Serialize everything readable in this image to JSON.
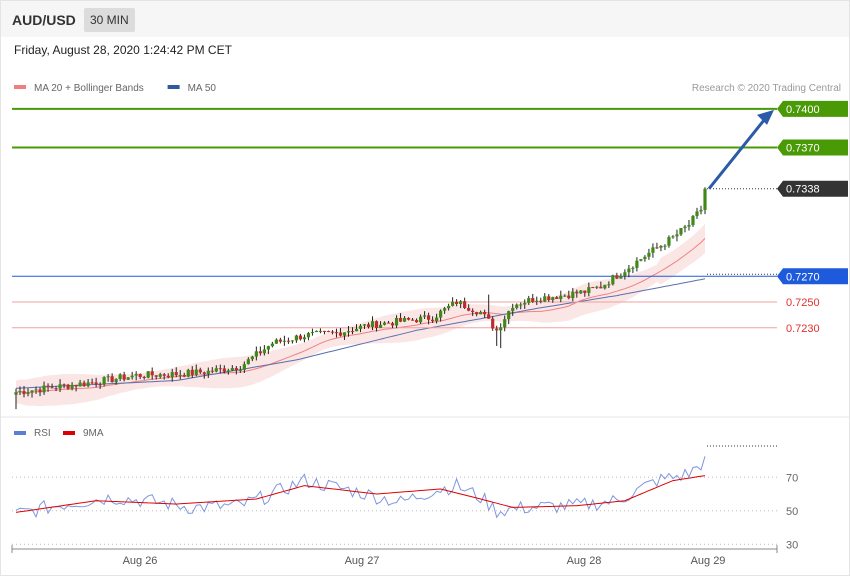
{
  "header": {
    "pair": "AUD/USD",
    "timeframe": "30 MIN"
  },
  "datetime": "Friday, August 28, 2020 1:24:42 PM CET",
  "credit": "Research © 2020 Trading Central",
  "legend": [
    {
      "label": "MA 20 + Bollinger Bands",
      "color": "#f08080"
    },
    {
      "label": "MA 50",
      "color": "#2f5a9e"
    }
  ],
  "rsi_legend": [
    {
      "label": "RSI",
      "color": "#5a7fd4"
    },
    {
      "label": "9MA",
      "color": "#dd0000"
    }
  ],
  "levels": [
    {
      "value": "0.7400",
      "style": "badge",
      "bg": "#4a9a08",
      "color": "#4a9a08"
    },
    {
      "value": "0.7370",
      "style": "badge",
      "bg": "#4a9a08",
      "color": "#4a9a08"
    },
    {
      "value": "0.7338",
      "style": "badge",
      "bg": "#333333",
      "color": "#333333"
    },
    {
      "value": "0.7270",
      "style": "badge",
      "bg": "#1e5adc",
      "color": "#1e5adc"
    },
    {
      "value": "0.7250",
      "style": "text",
      "bg": "",
      "color": "#e03030"
    },
    {
      "value": "0.7230",
      "style": "text",
      "bg": "",
      "color": "#e03030"
    }
  ],
  "rsi_ticks": [
    "70",
    "50",
    "30"
  ],
  "x_ticks": [
    "Aug 26",
    "Aug 27",
    "Aug 28",
    "Aug 29"
  ],
  "chart_data": {
    "type": "candlestick",
    "price_anchors": [
      {
        "i": 0,
        "v": 0.718
      },
      {
        "i": 10,
        "v": 0.7184
      },
      {
        "i": 20,
        "v": 0.7188
      },
      {
        "i": 30,
        "v": 0.7193
      },
      {
        "i": 40,
        "v": 0.7194
      },
      {
        "i": 48,
        "v": 0.7196
      },
      {
        "i": 56,
        "v": 0.72
      },
      {
        "i": 64,
        "v": 0.7218
      },
      {
        "i": 72,
        "v": 0.7224
      },
      {
        "i": 80,
        "v": 0.7226
      },
      {
        "i": 88,
        "v": 0.7232
      },
      {
        "i": 96,
        "v": 0.7235
      },
      {
        "i": 104,
        "v": 0.7238
      },
      {
        "i": 110,
        "v": 0.725
      },
      {
        "i": 116,
        "v": 0.7242
      },
      {
        "i": 120,
        "v": 0.7228
      },
      {
        "i": 124,
        "v": 0.7248
      },
      {
        "i": 130,
        "v": 0.7253
      },
      {
        "i": 136,
        "v": 0.7255
      },
      {
        "i": 142,
        "v": 0.7258
      },
      {
        "i": 146,
        "v": 0.7262
      },
      {
        "i": 152,
        "v": 0.7275
      },
      {
        "i": 158,
        "v": 0.7288
      },
      {
        "i": 164,
        "v": 0.73
      },
      {
        "i": 168,
        "v": 0.731
      },
      {
        "i": 171,
        "v": 0.7322
      },
      {
        "i": 172,
        "v": 0.7338
      }
    ],
    "ma50_anchors": [
      {
        "i": 0,
        "v": 0.7183
      },
      {
        "i": 40,
        "v": 0.7189
      },
      {
        "i": 70,
        "v": 0.7205
      },
      {
        "i": 100,
        "v": 0.7228
      },
      {
        "i": 130,
        "v": 0.7245
      },
      {
        "i": 150,
        "v": 0.7255
      },
      {
        "i": 172,
        "v": 0.7268
      }
    ],
    "rsi_anchors": [
      {
        "i": 0,
        "v": 48
      },
      {
        "i": 12,
        "v": 54
      },
      {
        "i": 24,
        "v": 58
      },
      {
        "i": 36,
        "v": 55
      },
      {
        "i": 44,
        "v": 52
      },
      {
        "i": 56,
        "v": 53
      },
      {
        "i": 64,
        "v": 60
      },
      {
        "i": 72,
        "v": 68
      },
      {
        "i": 84,
        "v": 62
      },
      {
        "i": 96,
        "v": 55
      },
      {
        "i": 104,
        "v": 62
      },
      {
        "i": 110,
        "v": 65
      },
      {
        "i": 116,
        "v": 58
      },
      {
        "i": 120,
        "v": 50
      },
      {
        "i": 128,
        "v": 52
      },
      {
        "i": 140,
        "v": 53
      },
      {
        "i": 150,
        "v": 56
      },
      {
        "i": 160,
        "v": 68
      },
      {
        "i": 168,
        "v": 72
      },
      {
        "i": 172,
        "v": 80
      }
    ],
    "rsi9_anchors": [
      {
        "i": 0,
        "v": 49
      },
      {
        "i": 20,
        "v": 56
      },
      {
        "i": 40,
        "v": 54
      },
      {
        "i": 60,
        "v": 57
      },
      {
        "i": 72,
        "v": 65
      },
      {
        "i": 90,
        "v": 60
      },
      {
        "i": 106,
        "v": 63
      },
      {
        "i": 116,
        "v": 57
      },
      {
        "i": 124,
        "v": 52
      },
      {
        "i": 140,
        "v": 53
      },
      {
        "i": 152,
        "v": 56
      },
      {
        "i": 164,
        "v": 68
      },
      {
        "i": 172,
        "v": 71
      }
    ],
    "bars": 173,
    "price_range": [
      0.717,
      0.741
    ],
    "rsi_range": [
      20,
      90
    ],
    "target_arrow": {
      "from": 0.7338,
      "to": 0.74
    }
  }
}
